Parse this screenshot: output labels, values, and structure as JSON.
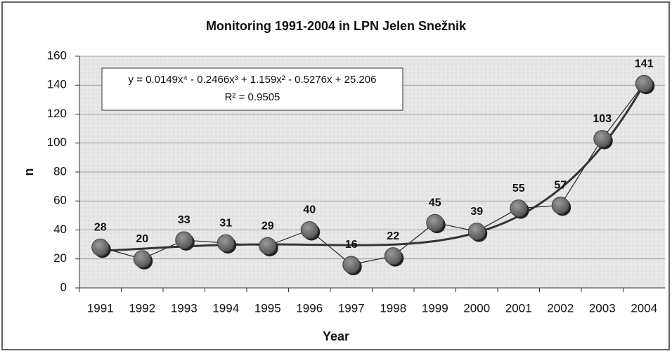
{
  "chart_data": {
    "type": "line",
    "title": "Monitoring 1991-2004 in LPN Jelen Snežnik",
    "x_label": "Year",
    "y_label": "n",
    "categories": [
      "1991",
      "1992",
      "1993",
      "1994",
      "1995",
      "1996",
      "1997",
      "1998",
      "1999",
      "2000",
      "2001",
      "2002",
      "2003",
      "2004"
    ],
    "series": [
      {
        "name": "n",
        "color": "#555555",
        "values": [
          28,
          20,
          33,
          31,
          29,
          40,
          16,
          22,
          45,
          39,
          55,
          57,
          103,
          141
        ]
      }
    ],
    "ylim": [
      0,
      160
    ],
    "yticks": [
      0,
      20,
      40,
      60,
      80,
      100,
      120,
      140,
      160
    ],
    "grid": true,
    "trendline": {
      "equation": "y = 0.0149x⁴ - 0.2466x³ + 1.159x² - 0.5276x + 25.206",
      "r_squared_label": "R² = 0.9505",
      "coefficients": [
        0.0149,
        -0.2466,
        1.159,
        -0.5276,
        25.206
      ],
      "color": "#333333"
    }
  }
}
